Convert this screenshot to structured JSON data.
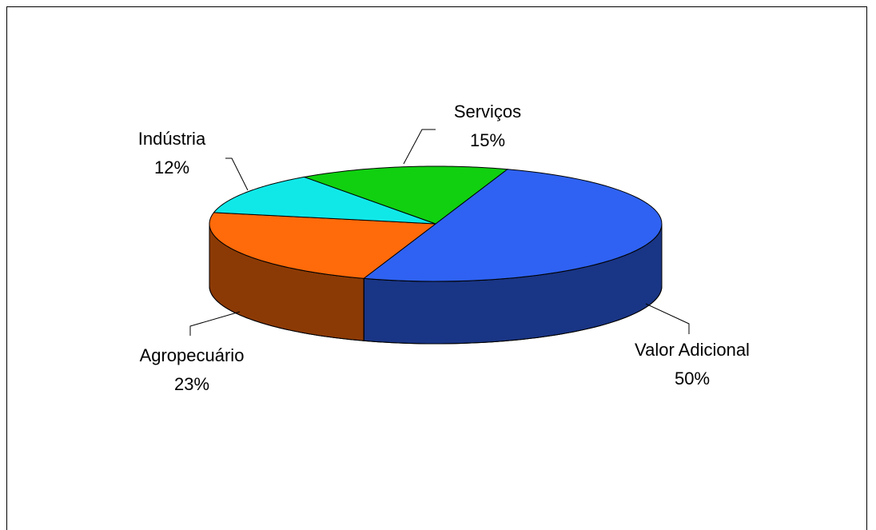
{
  "chart_data": {
    "type": "pie3d",
    "categories": [
      "Valor Adicional",
      "Agropecuário",
      "Indústria",
      "Serviços"
    ],
    "values": [
      50,
      23,
      12,
      15
    ],
    "value_labels": [
      "50%",
      "23%",
      "12%",
      "15%"
    ],
    "colors": [
      "#2f62f2",
      "#ff6a0a",
      "#10e8e8",
      "#10d010"
    ]
  }
}
